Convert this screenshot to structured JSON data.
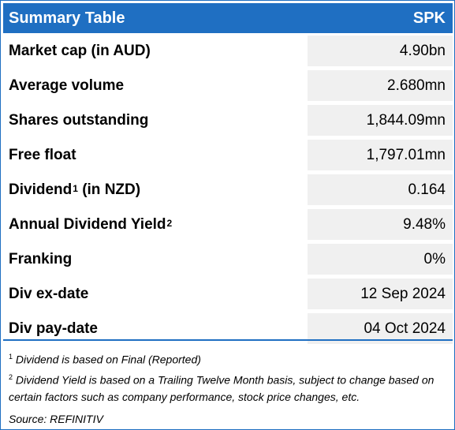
{
  "header": {
    "title": "Summary Table",
    "ticker": "SPK"
  },
  "rows": [
    {
      "label": "Market cap (in AUD)",
      "sup": "",
      "suffix": "",
      "value": "4.90bn"
    },
    {
      "label": "Average volume",
      "sup": "",
      "suffix": "",
      "value": "2.680mn"
    },
    {
      "label": "Shares outstanding",
      "sup": "",
      "suffix": "",
      "value": "1,844.09mn"
    },
    {
      "label": "Free float",
      "sup": "",
      "suffix": "",
      "value": "1,797.01mn"
    },
    {
      "label": "Dividend",
      "sup": "1",
      "suffix": " (in NZD)",
      "value": "0.164"
    },
    {
      "label": "Annual Dividend Yield",
      "sup": "2",
      "suffix": "",
      "value": "9.48%"
    },
    {
      "label": "Franking",
      "sup": "",
      "suffix": "",
      "value": "0%"
    },
    {
      "label": "Div ex-date",
      "sup": "",
      "suffix": "",
      "value": "12 Sep 2024"
    },
    {
      "label": "Div pay-date",
      "sup": "",
      "suffix": "",
      "value": "04 Oct 2024"
    }
  ],
  "notes": {
    "note1_num": "1",
    "note1_text": " Dividend is based on Final (Reported)",
    "note2_num": "2",
    "note2_text": " Dividend Yield is based on a Trailing Twelve Month basis, subject to change based on certain factors such as company performance, stock price changes, etc.",
    "source": "Source: REFINITIV"
  }
}
